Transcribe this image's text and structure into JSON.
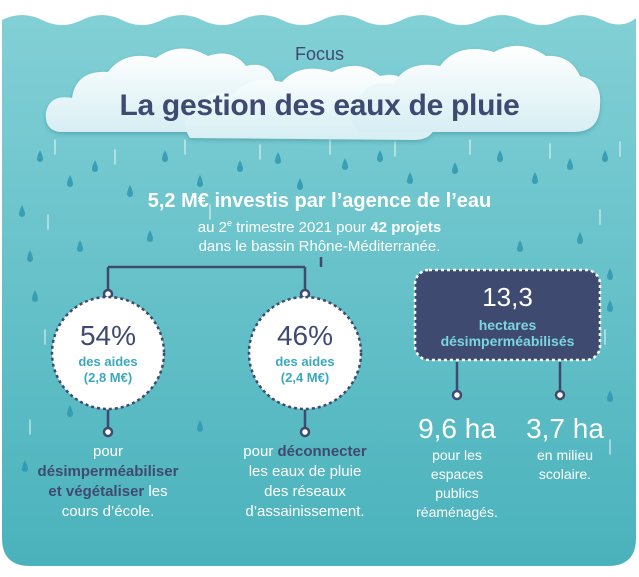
{
  "header": {
    "focus": "Focus",
    "title": "La gestion des eaux de pluie"
  },
  "summary": {
    "headline": "5,2 M€ investis par l’agence de l’eau",
    "line1_pre": "au 2",
    "line1_sup": "e",
    "line1_mid": " trimestre 2021 pour ",
    "line1_bold": "42 projets",
    "line2": "dans le bassin Rhône-Méditerranée."
  },
  "left_stat": {
    "percent": "54%",
    "label1": "des aides",
    "label2": "(2,8 M€)",
    "desc_line1": "pour",
    "desc_line2": "désimperméabiliser",
    "desc_line3_bold": "et végétaliser",
    "desc_line3_rest": " les",
    "desc_line4": "cours d’école."
  },
  "mid_stat": {
    "percent": "46%",
    "label1": "des aides",
    "label2": "(2,4 M€)",
    "desc_line1_pre": "pour ",
    "desc_line1_bold": "déconnecter",
    "desc_line2": "les eaux de pluie",
    "desc_line3": "des réseaux",
    "desc_line4": "d’assainissement."
  },
  "right_stat": {
    "value": "13,3",
    "label1": "hectares",
    "label2": "désimperméabilisés"
  },
  "sub_left": {
    "value": "9,6 ha",
    "line1": "pour les",
    "line2": "espaces",
    "line3": "publics",
    "line4": "réaménagés."
  },
  "sub_right": {
    "value": "3,7 ha",
    "line1": "en milieu",
    "line2": "scolaire."
  },
  "colors": {
    "background_top": "#7dcdd3",
    "background_bottom": "#4bb3bd",
    "navy": "#3f4a70",
    "drop": "#2f98b0",
    "accent_teal": "#3aa9bd",
    "box_label": "#7ad6e3"
  }
}
